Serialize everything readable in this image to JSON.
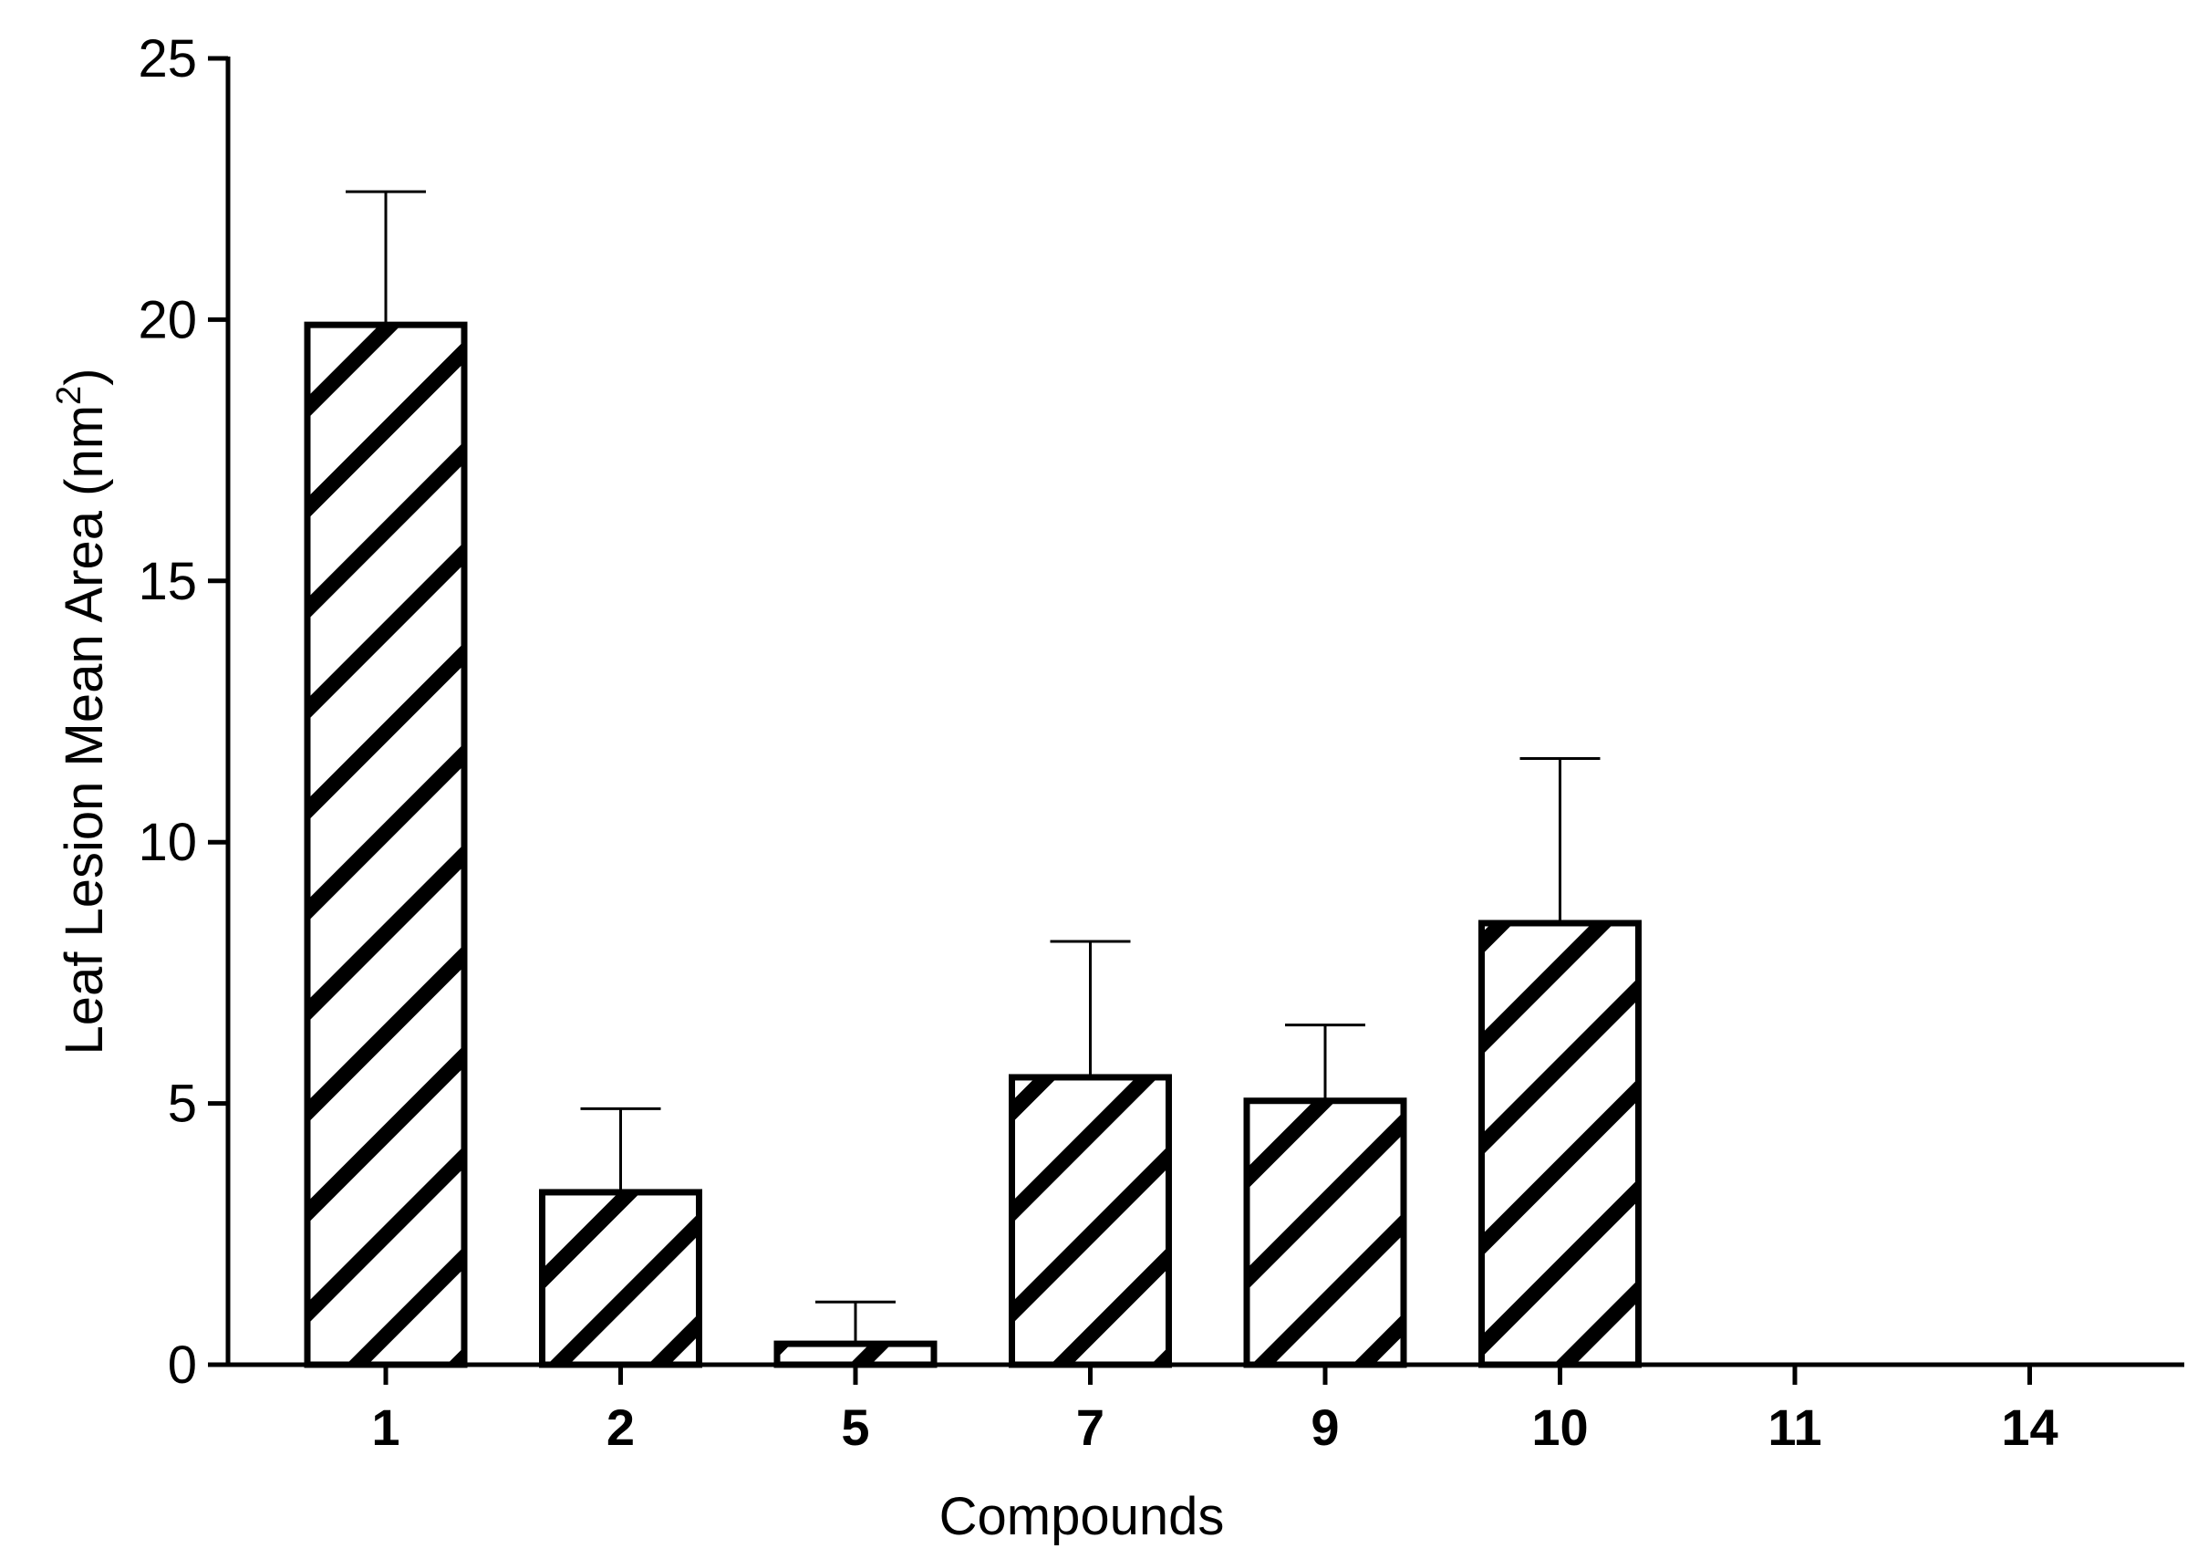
{
  "chart_data": {
    "type": "bar",
    "xlabel": "Compounds",
    "ylabel": "Leaf Lesion Mean Area (nm",
    "ylabel_superscript": "2",
    "ylabel_close": ")",
    "categories": [
      "1",
      "2",
      "5",
      "7",
      "9",
      "10",
      "11",
      "14"
    ],
    "values": [
      19.9,
      3.3,
      0.4,
      5.5,
      5.05,
      8.45,
      0,
      0
    ],
    "error_upper": [
      2.55,
      1.6,
      0.8,
      2.6,
      1.45,
      3.15,
      0,
      0
    ],
    "ylim": [
      0,
      25
    ],
    "yticks": [
      0,
      5,
      10,
      15,
      20,
      25
    ],
    "grid": false,
    "fill": "diagonal-hatch",
    "colors": {
      "bar_stroke": "#000000",
      "bar_fill": "#ffffff",
      "axis": "#000000"
    }
  }
}
